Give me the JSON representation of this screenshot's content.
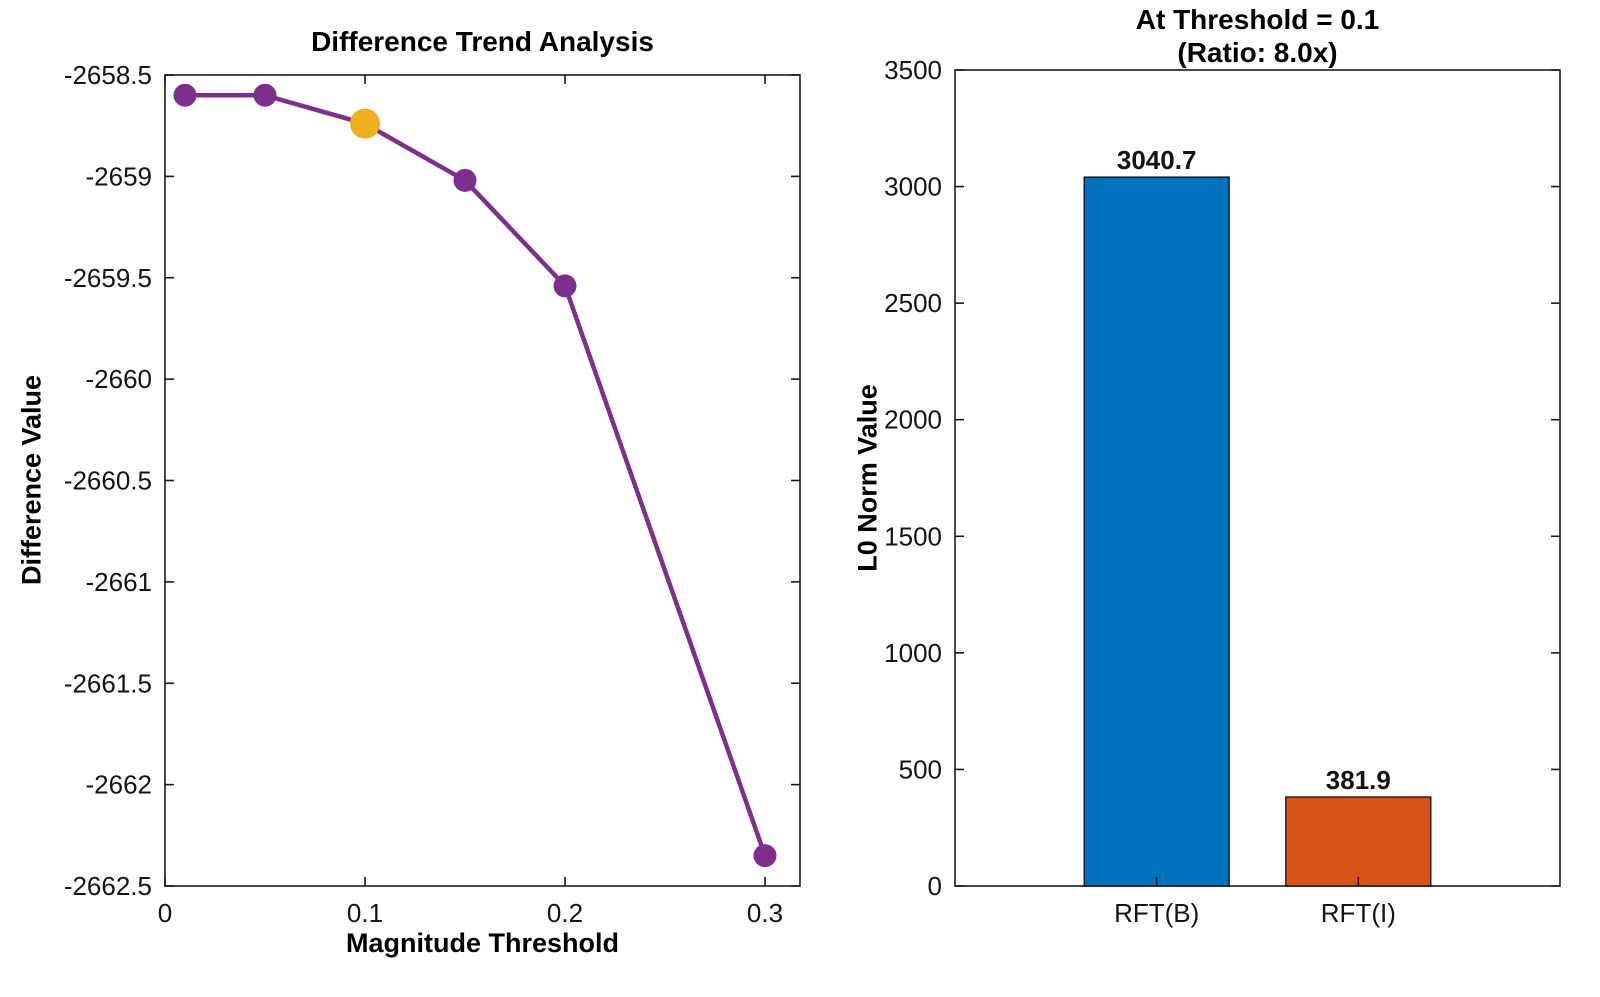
{
  "figure": {
    "background": "#ffffff",
    "axis_color": "#1a1a1a"
  },
  "chart_data": [
    {
      "type": "line",
      "title": "Difference Trend Analysis",
      "xlabel": "Magnitude Threshold",
      "ylabel": "Difference Value",
      "x": [
        0.01,
        0.05,
        0.1,
        0.15,
        0.2,
        0.3
      ],
      "y": [
        -2658.6,
        -2658.6,
        -2658.74,
        -2659.02,
        -2659.54,
        -2662.35
      ],
      "highlight_index": 2,
      "highlight_x": 0.1,
      "xlim": [
        0,
        0.3175
      ],
      "ylim": [
        -2662.5,
        -2658.5
      ],
      "xticks": [
        0,
        0.1,
        0.2,
        0.3
      ],
      "yticks": [
        -2658.5,
        -2659,
        -2659.5,
        -2660,
        -2660.5,
        -2661,
        -2661.5,
        -2662,
        -2662.5
      ],
      "line_color": "#7E2F8E",
      "marker_color": "#7E2F8E",
      "highlight_color": "#EDB120",
      "grid": false,
      "legend": "none"
    },
    {
      "type": "bar",
      "title": "At Threshold = 0.1",
      "subtitle": "(Ratio: 8.0x)",
      "xlabel": "",
      "ylabel": "L0 Norm Value",
      "categories": [
        "RFT(B)",
        "RFT(I)"
      ],
      "values": [
        3040.7,
        381.9
      ],
      "value_labels": [
        "3040.7",
        "381.9"
      ],
      "bar_colors": [
        "#0072BD",
        "#D95319"
      ],
      "bar_edge_color": "#000000",
      "ylim": [
        0,
        3500
      ],
      "yticks": [
        0,
        500,
        1000,
        1500,
        2000,
        2500,
        3000,
        3500
      ],
      "grid": false,
      "legend": "none"
    }
  ]
}
